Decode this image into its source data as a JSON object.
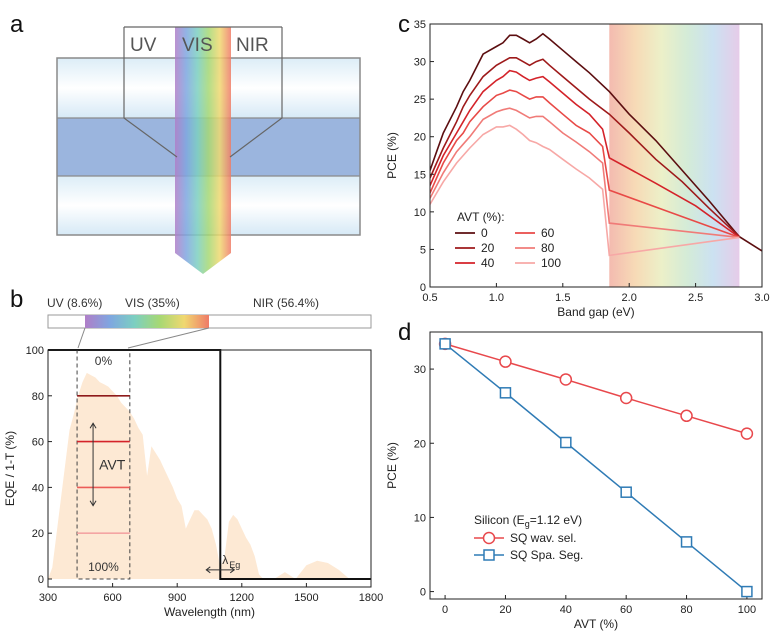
{
  "panel_labels": {
    "a": "a",
    "b": "b",
    "c": "c",
    "d": "d"
  },
  "panel_a": {
    "labels": {
      "uv": "UV",
      "vis": "VIS",
      "nir": "NIR"
    }
  },
  "chart_data": [
    {
      "panel": "b",
      "type": "area",
      "xlabel": "Wavelength (nm)",
      "ylabel": "EQE / 1-T (%)",
      "xlim": [
        300,
        1800
      ],
      "ylim": [
        0,
        100
      ],
      "xticks": [
        "300",
        "600",
        "900",
        "1200",
        "1500",
        "1800"
      ],
      "yticks": [
        "0",
        "20",
        "40",
        "60",
        "80",
        "100"
      ],
      "spectrum_bar": {
        "uv": "UV (8.6%)",
        "vis": "VIS (35%)",
        "nir": "NIR (56.4%)"
      },
      "spectrum": {
        "x": [
          300,
          320,
          340,
          360,
          380,
          400,
          420,
          440,
          460,
          480,
          500,
          520,
          540,
          560,
          580,
          600,
          620,
          640,
          660,
          680,
          700,
          720,
          740,
          760,
          780,
          800,
          820,
          840,
          860,
          880,
          900,
          920,
          940,
          960,
          980,
          1000,
          1020,
          1040,
          1060,
          1080,
          1100,
          1120,
          1140,
          1160,
          1180,
          1200,
          1220,
          1240,
          1260,
          1280,
          1300,
          1350,
          1400,
          1450,
          1500,
          1550,
          1600,
          1650,
          1700,
          1750,
          1800
        ],
        "y": [
          0,
          5,
          20,
          35,
          50,
          65,
          72,
          80,
          86,
          90,
          89,
          88,
          86,
          85,
          84,
          82,
          80,
          77,
          75,
          73,
          70,
          66,
          63,
          45,
          58,
          55,
          52,
          48,
          44,
          40,
          35,
          32,
          22,
          26,
          30,
          30,
          28,
          26,
          22,
          15,
          5,
          10,
          25,
          28,
          26,
          22,
          18,
          15,
          10,
          2,
          0,
          0,
          3,
          0,
          6,
          8,
          7,
          4,
          0,
          0,
          0
        ]
      },
      "eqe_step": {
        "x": [
          300,
          1100,
          1100,
          1800
        ],
        "y": [
          100,
          100,
          0,
          0
        ]
      },
      "visible_window_nm": [
        435,
        680
      ],
      "avt_levels": [
        80,
        60,
        40,
        20
      ],
      "labels": {
        "top": "0%",
        "bottom": "100%",
        "avt": "AVT",
        "eg": "λ",
        "eg_sub": "Eg"
      }
    },
    {
      "panel": "c",
      "type": "line",
      "xlabel": "Band gap (eV)",
      "ylabel": "PCE (%)",
      "xlim": [
        0.5,
        3.0
      ],
      "ylim": [
        0,
        35
      ],
      "xticks": [
        "0.5",
        "1.0",
        "1.5",
        "2.0",
        "2.5",
        "3.0"
      ],
      "yticks": [
        "0",
        "5",
        "10",
        "15",
        "20",
        "25",
        "30",
        "35"
      ],
      "shaded_range_ev": [
        1.85,
        2.83
      ],
      "legend_title": "AVT (%):",
      "legend": "lower-left",
      "series": [
        {
          "name": "0",
          "color": "#5c0e10",
          "x": [
            0.5,
            0.55,
            0.6,
            0.7,
            0.75,
            0.8,
            0.9,
            1.0,
            1.05,
            1.1,
            1.15,
            1.2,
            1.25,
            1.3,
            1.35,
            1.4,
            1.5,
            1.6,
            1.7,
            1.85,
            2.0,
            2.2,
            2.4,
            2.6,
            2.8,
            2.83,
            3.0
          ],
          "y": [
            15.5,
            18,
            20.5,
            24,
            26,
            27.5,
            31,
            32,
            32.5,
            33.5,
            33.5,
            33,
            32.5,
            33,
            33.7,
            33,
            31.5,
            30,
            28.5,
            26,
            23,
            19.5,
            15.5,
            11.5,
            7.3,
            6.7,
            4.8
          ]
        },
        {
          "name": "20",
          "color": "#9e1a1b",
          "x": [
            0.5,
            0.55,
            0.6,
            0.7,
            0.75,
            0.8,
            0.9,
            1.0,
            1.05,
            1.1,
            1.15,
            1.2,
            1.25,
            1.3,
            1.35,
            1.4,
            1.5,
            1.6,
            1.7,
            1.85,
            2.0,
            2.2,
            2.4,
            2.6,
            2.8,
            2.83
          ],
          "y": [
            14.5,
            16.5,
            18.5,
            22,
            24,
            25.5,
            28,
            29.5,
            30,
            30.5,
            30.5,
            30,
            29.5,
            30,
            30.3,
            29.5,
            28,
            26.5,
            25,
            23,
            20.5,
            17,
            14,
            10.5,
            7.2,
            6.7
          ]
        },
        {
          "name": "40",
          "color": "#d4232a",
          "x": [
            0.5,
            0.55,
            0.6,
            0.7,
            0.75,
            0.8,
            0.9,
            1.0,
            1.05,
            1.1,
            1.15,
            1.2,
            1.25,
            1.3,
            1.35,
            1.4,
            1.5,
            1.6,
            1.7,
            1.8,
            1.85,
            2.2,
            2.5,
            2.83
          ],
          "y": [
            13.5,
            15.5,
            17.5,
            20.5,
            22,
            23.5,
            26,
            27.5,
            28,
            28.8,
            28.6,
            28,
            27.5,
            27.8,
            28,
            27.3,
            25.8,
            24.3,
            23,
            21,
            17.2,
            13.8,
            10.8,
            6.6
          ]
        },
        {
          "name": "60",
          "color": "#e84a47",
          "x": [
            0.5,
            0.55,
            0.6,
            0.7,
            0.75,
            0.8,
            0.9,
            1.0,
            1.05,
            1.1,
            1.15,
            1.2,
            1.25,
            1.3,
            1.35,
            1.4,
            1.5,
            1.6,
            1.7,
            1.8,
            1.85,
            2.3,
            2.83
          ],
          "y": [
            12.5,
            14.5,
            16.5,
            19.5,
            20.5,
            22,
            24,
            25.5,
            25.8,
            26.2,
            26,
            25.5,
            25,
            25.3,
            25.3,
            24.5,
            23,
            21.5,
            20.5,
            18.7,
            12.9,
            10,
            6.6
          ]
        },
        {
          "name": "80",
          "color": "#f07b78",
          "x": [
            0.5,
            0.55,
            0.6,
            0.7,
            0.75,
            0.8,
            0.9,
            1.0,
            1.05,
            1.1,
            1.15,
            1.2,
            1.25,
            1.3,
            1.35,
            1.4,
            1.5,
            1.6,
            1.7,
            1.8,
            1.85,
            2.83
          ],
          "y": [
            11.8,
            13.5,
            15.2,
            18,
            19,
            20,
            22.3,
            23.3,
            23.6,
            23.8,
            23.5,
            23,
            22.5,
            22.7,
            22.7,
            22,
            20.5,
            19.3,
            18,
            16.5,
            8.5,
            6.6
          ]
        },
        {
          "name": "100",
          "color": "#f7a8a6",
          "x": [
            0.5,
            0.55,
            0.6,
            0.7,
            0.75,
            0.8,
            0.9,
            1.0,
            1.05,
            1.1,
            1.15,
            1.2,
            1.25,
            1.3,
            1.35,
            1.4,
            1.5,
            1.6,
            1.7,
            1.8,
            1.85,
            2.83
          ],
          "y": [
            11,
            12.5,
            14,
            16.5,
            17.5,
            18.5,
            20.3,
            21.3,
            21.3,
            21.5,
            21,
            20.3,
            19.5,
            19.2,
            18.7,
            18.3,
            17,
            15.7,
            14.5,
            13,
            4.2,
            6.6
          ]
        }
      ]
    },
    {
      "panel": "d",
      "type": "line",
      "xlabel": "AVT (%)",
      "ylabel": "PCE (%)",
      "xlim": [
        -5,
        105
      ],
      "ylim": [
        -1,
        35
      ],
      "xticks": [
        "0",
        "20",
        "40",
        "60",
        "80",
        "100"
      ],
      "yticks": [
        "0",
        "10",
        "20",
        "30"
      ],
      "legend": "lower-left",
      "legend_title": {
        "main": "Silicon (E",
        "sub": "g",
        "tail": "=1.12 eV)"
      },
      "series": [
        {
          "name": "SQ wav. sel.",
          "color": "#e8484c",
          "marker": "circle",
          "x": [
            0,
            20,
            40,
            60,
            80,
            100
          ],
          "y": [
            33.4,
            31,
            28.6,
            26.1,
            23.7,
            21.3
          ]
        },
        {
          "name": "SQ Spa. Seg.",
          "color": "#2f7bb5",
          "marker": "square",
          "x": [
            0,
            20,
            40,
            60,
            80,
            100
          ],
          "y": [
            33.4,
            26.8,
            20.1,
            13.4,
            6.7,
            0
          ]
        }
      ]
    }
  ]
}
